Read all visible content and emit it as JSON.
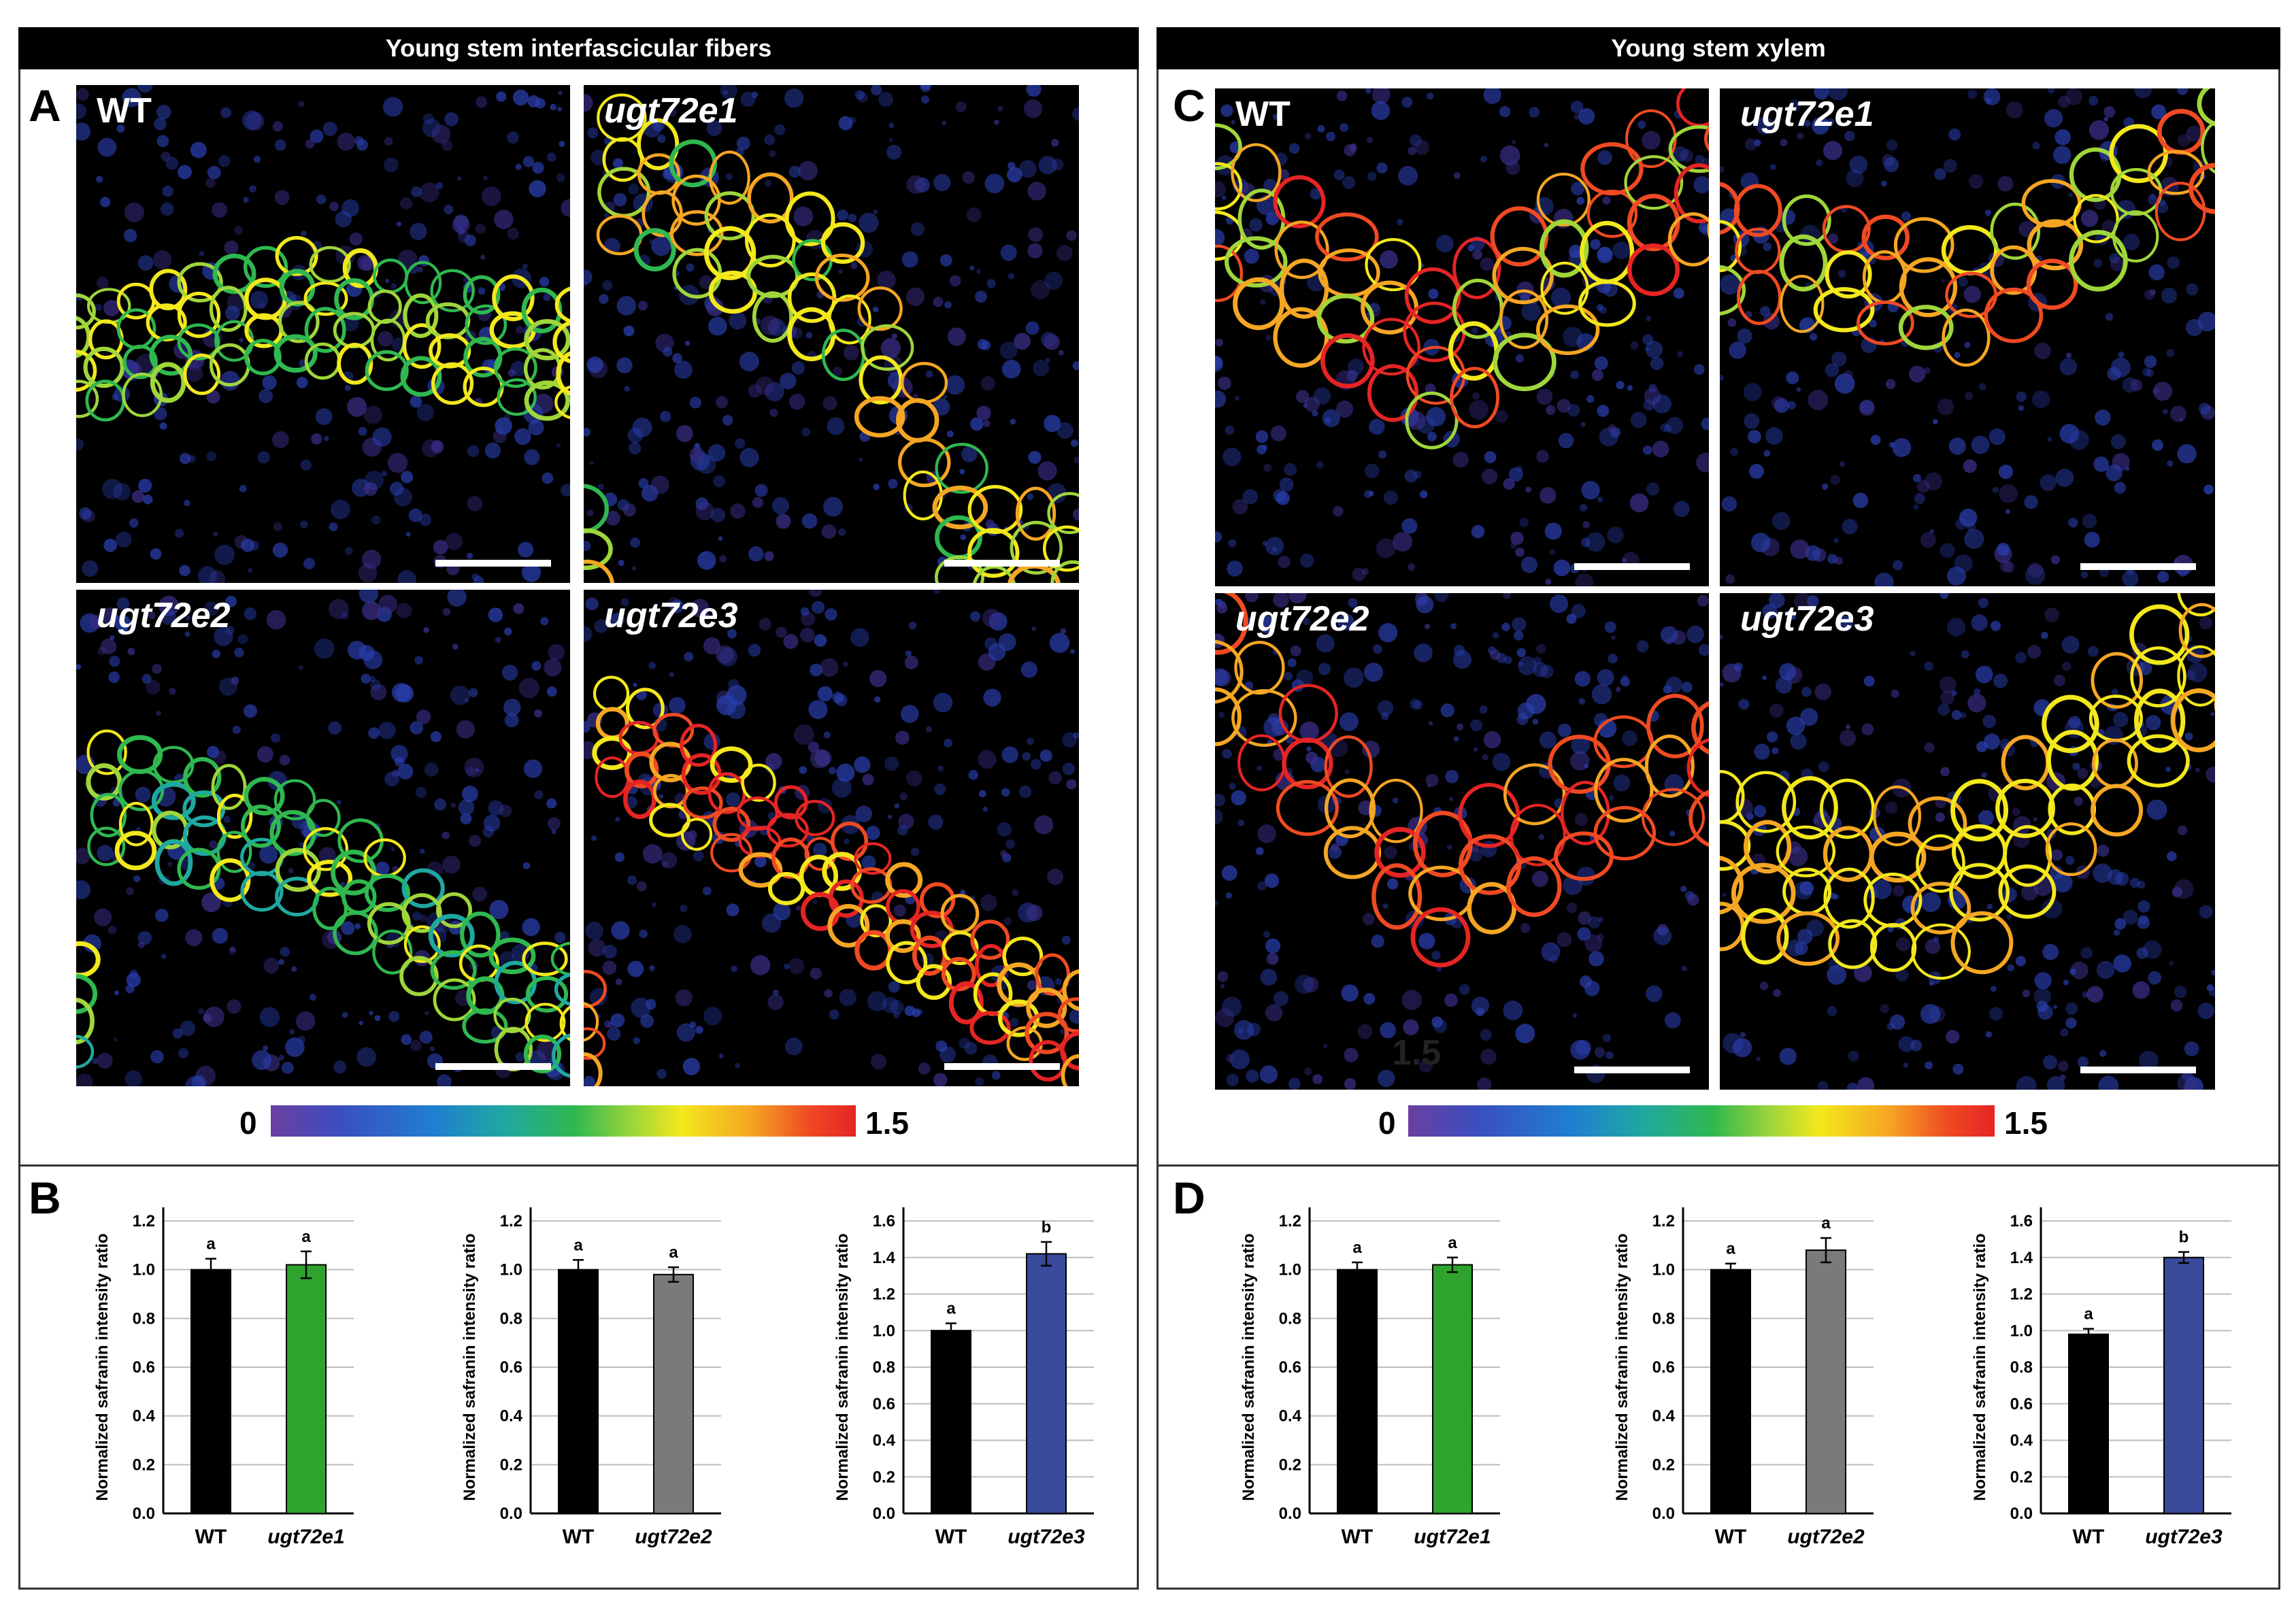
{
  "figure": {
    "left_header": "Young stem interfascicular fibers",
    "right_header": "Young stem xylem",
    "panel_letters": [
      "A",
      "B",
      "C",
      "D"
    ],
    "colorbar_min": "0",
    "colorbar_max": "1.5",
    "stray_label": "1.5",
    "micrographs_A": [
      {
        "label": "WT",
        "italic": false
      },
      {
        "label": "ugt72e1",
        "italic": true
      },
      {
        "label": "ugt72e2",
        "italic": true
      },
      {
        "label": "ugt72e3",
        "italic": true
      }
    ],
    "micrographs_C": [
      {
        "label": "WT",
        "italic": false
      },
      {
        "label": "ugt72e1",
        "italic": true
      },
      {
        "label": "ugt72e2",
        "italic": true
      },
      {
        "label": "ugt72e3",
        "italic": true
      }
    ],
    "colors": {
      "wt": "#000000",
      "ugt72e1": "#2ea42e",
      "ugt72e2": "#7a7a7a",
      "ugt72e3": "#3a4a9a",
      "gridline": "#bdbdbd"
    }
  },
  "chart_data": [
    {
      "type": "bar",
      "panel": "B",
      "ylabel": "Normalized safranin intensity ratio",
      "categories": [
        "WT",
        "ugt72e1"
      ],
      "values": [
        1.0,
        1.02
      ],
      "errors": [
        0.045,
        0.055
      ],
      "significance": [
        "a",
        "a"
      ],
      "ylim": [
        0,
        1.2
      ],
      "yticks": [
        "0.0",
        "0.2",
        "0.4",
        "0.6",
        "0.8",
        "1.0",
        "1.2"
      ],
      "grid": true
    },
    {
      "type": "bar",
      "panel": "B",
      "ylabel": "Normalized safranin intensity ratio",
      "categories": [
        "WT",
        "ugt72e2"
      ],
      "values": [
        1.0,
        0.98
      ],
      "errors": [
        0.04,
        0.03
      ],
      "significance": [
        "a",
        "a"
      ],
      "ylim": [
        0,
        1.2
      ],
      "yticks": [
        "0.0",
        "0.2",
        "0.4",
        "0.6",
        "0.8",
        "1.0",
        "1.2"
      ],
      "grid": true
    },
    {
      "type": "bar",
      "panel": "B",
      "ylabel": "Normalized safranin intensity ratio",
      "categories": [
        "WT",
        "ugt72e3"
      ],
      "values": [
        1.0,
        1.42
      ],
      "errors": [
        0.04,
        0.065
      ],
      "significance": [
        "a",
        "b"
      ],
      "ylim": [
        0,
        1.6
      ],
      "yticks": [
        "0.0",
        "0.2",
        "0.4",
        "0.6",
        "0.8",
        "1.0",
        "1.2",
        "1.4",
        "1.6"
      ],
      "grid": true
    },
    {
      "type": "bar",
      "panel": "D",
      "ylabel": "Normalized safranin intensity ratio",
      "categories": [
        "WT",
        "ugt72e1"
      ],
      "values": [
        1.0,
        1.02
      ],
      "errors": [
        0.03,
        0.03
      ],
      "significance": [
        "a",
        "a"
      ],
      "ylim": [
        0,
        1.2
      ],
      "yticks": [
        "0.0",
        "0.2",
        "0.4",
        "0.6",
        "0.8",
        "1.0",
        "1.2"
      ],
      "grid": true
    },
    {
      "type": "bar",
      "panel": "D",
      "ylabel": "Normalized safranin intensity ratio",
      "categories": [
        "WT",
        "ugt72e2"
      ],
      "values": [
        1.0,
        1.08
      ],
      "errors": [
        0.025,
        0.05
      ],
      "significance": [
        "a",
        "a"
      ],
      "ylim": [
        0,
        1.2
      ],
      "yticks": [
        "0.0",
        "0.2",
        "0.4",
        "0.6",
        "0.8",
        "1.0",
        "1.2"
      ],
      "grid": true
    },
    {
      "type": "bar",
      "panel": "D",
      "ylabel": "Normalized safranin intensity ratio",
      "categories": [
        "WT",
        "ugt72e3"
      ],
      "values": [
        0.98,
        1.4
      ],
      "errors": [
        0.03,
        0.03
      ],
      "significance": [
        "a",
        "b"
      ],
      "ylim": [
        0,
        1.6
      ],
      "yticks": [
        "0.0",
        "0.2",
        "0.4",
        "0.6",
        "0.8",
        "1.0",
        "1.2",
        "1.4",
        "1.6"
      ],
      "grid": true
    }
  ]
}
